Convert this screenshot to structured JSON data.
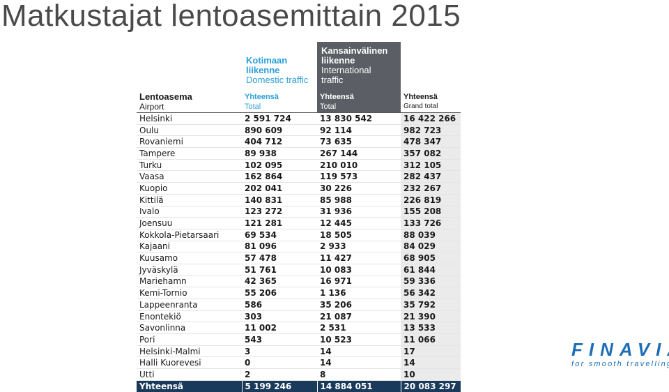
{
  "title": "Matkustajat lentoasemittain 2015",
  "headers": {
    "domestic": {
      "line1": "Kotimaan",
      "line2": "liikenne",
      "line3": "Domestic traffic"
    },
    "international": {
      "line1": "Kansainvälinen",
      "line2": "liikenne",
      "line3": "International",
      "line4": "traffic"
    },
    "airport": {
      "bold": "Lentoasema",
      "sub": "Airport"
    },
    "dom_total": {
      "bold": "Yhteensä",
      "sub": "Total"
    },
    "int_total": {
      "bold": "Yhteensä",
      "sub": "Total"
    },
    "grand_total": {
      "bold": "Yhteensä",
      "sub": "Grand total"
    }
  },
  "rows": [
    [
      "Helsinki",
      "2 591 724",
      "13 830 542",
      "16 422 266"
    ],
    [
      "Oulu",
      "890 609",
      "92 114",
      "982 723"
    ],
    [
      "Rovaniemi",
      "404 712",
      "73 635",
      "478 347"
    ],
    [
      "Tampere",
      "89 938",
      "267 144",
      "357 082"
    ],
    [
      "Turku",
      "102 095",
      "210 010",
      "312 105"
    ],
    [
      "Vaasa",
      "162 864",
      "119 573",
      "282 437"
    ],
    [
      "Kuopio",
      "202 041",
      "30 226",
      "232 267"
    ],
    [
      "Kittilä",
      "140 831",
      "85 988",
      "226 819"
    ],
    [
      "Ivalo",
      "123 272",
      "31 936",
      "155 208"
    ],
    [
      "Joensuu",
      "121 281",
      "12 445",
      "133 726"
    ],
    [
      "Kokkola-Pietarsaari",
      "69 534",
      "18 505",
      "88 039"
    ],
    [
      "Kajaani",
      "81 096",
      "2 933",
      "84 029"
    ],
    [
      "Kuusamo",
      "57 478",
      "11 427",
      "68 905"
    ],
    [
      "Jyväskylä",
      "51 761",
      "10 083",
      "61 844"
    ],
    [
      "Mariehamn",
      "42 365",
      "16 971",
      "59 336"
    ],
    [
      "Kemi-Tornio",
      "55 206",
      "1 136",
      "56 342"
    ],
    [
      "Lappeenranta",
      "586",
      "35 206",
      "35 792"
    ],
    [
      "Enontekiö",
      "303",
      "21 087",
      "21 390"
    ],
    [
      "Savonlinna",
      "11 002",
      "2 531",
      "13 533"
    ],
    [
      "Pori",
      "543",
      "10 523",
      "11 066"
    ],
    [
      "Helsinki-Malmi",
      "3",
      "14",
      "17"
    ],
    [
      "Halli Kuorevesi",
      "0",
      "14",
      "14"
    ],
    [
      "Utti",
      "2",
      "8",
      "10"
    ]
  ],
  "total": [
    "Yhteensä",
    "5 199 246",
    "14 884 051",
    "20 083 297"
  ],
  "logo": {
    "name": "FINAVIA",
    "tagline": "for smooth travelling"
  }
}
